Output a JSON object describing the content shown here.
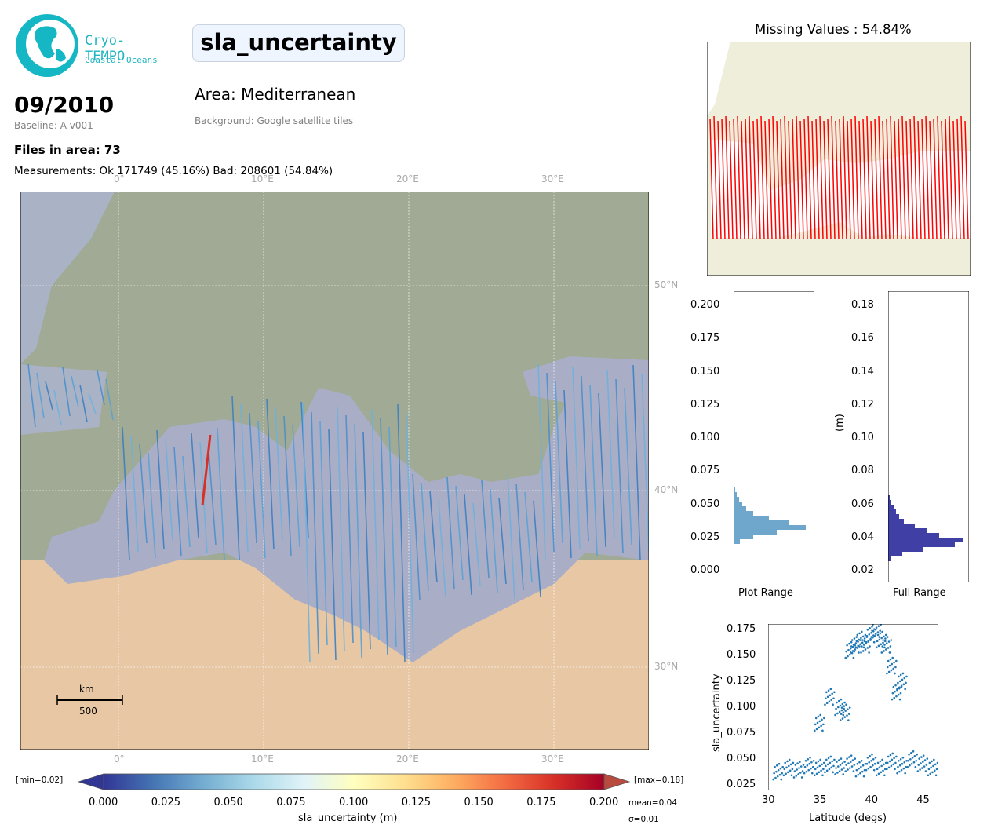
{
  "logo": {
    "name_line1": "Cryo-TEMPO",
    "name_line2": "Coastal Oceans"
  },
  "header": {
    "variable": "sla_uncertainty",
    "date": "09/2010",
    "baseline": "Baseline: A v001",
    "area": "Area: Mediterranean",
    "background": "Background: Google satellite tiles",
    "files": "Files in area: 73",
    "measurements": "Measurements: Ok 171749 (45.16%) Bad: 208601 (54.84%)"
  },
  "main_map": {
    "lon_labels": [
      "0°",
      "10°E",
      "20°E",
      "30°E"
    ],
    "lat_labels": [
      "50°N",
      "40°N",
      "30°N"
    ],
    "scale_bar": {
      "unit": "km",
      "value": "500"
    }
  },
  "colorbar": {
    "label": "sla_uncertainty (m)",
    "min_label": "[min=0.02]",
    "max_label": "[max=0.18]",
    "ticks": [
      "0.000",
      "0.025",
      "0.050",
      "0.075",
      "0.100",
      "0.125",
      "0.150",
      "0.175",
      "0.200"
    ],
    "mean": "mean=0.04",
    "sigma": "σ=0.01",
    "colors": [
      "#313695",
      "#4575b4",
      "#74add1",
      "#abd9e9",
      "#e0f3f8",
      "#ffffbf",
      "#fee090",
      "#fdae61",
      "#f46d43",
      "#d73027",
      "#a50026"
    ]
  },
  "missing_map": {
    "title": "Missing Values : 54.84%",
    "track_color": "#ff0000"
  },
  "hist_plot_range": {
    "xlabel": "Plot Range",
    "ticks": [
      "0.200",
      "0.175",
      "0.150",
      "0.125",
      "0.100",
      "0.075",
      "0.050",
      "0.025",
      "0.000"
    ],
    "color": "#6ea6cc"
  },
  "hist_full_range": {
    "xlabel": "Full Range",
    "ylabel": "(m)",
    "ticks": [
      "0.18",
      "0.16",
      "0.14",
      "0.12",
      "0.10",
      "0.08",
      "0.06",
      "0.04",
      "0.02"
    ],
    "color": "#3f3fa5"
  },
  "chart_data": {
    "type": "scatter",
    "xlabel": "Latitude (degs)",
    "ylabel": "sla_uncertainty",
    "xlim": [
      30,
      46.5
    ],
    "ylim": [
      0.02,
      0.18
    ],
    "xticks": [
      "30",
      "35",
      "40",
      "45"
    ],
    "yticks": [
      "0.025",
      "0.050",
      "0.075",
      "0.100",
      "0.125",
      "0.150",
      "0.175"
    ],
    "color": "#1f77b4",
    "series": [
      {
        "x": [
          31.0,
          32.0,
          33.0,
          34.0,
          35.0,
          36.0,
          37.0,
          38.0,
          39.0,
          40.0,
          41.0,
          42.0,
          43.0,
          44.0,
          45.0,
          46.0
        ],
        "y": [
          0.038,
          0.042,
          0.04,
          0.044,
          0.042,
          0.045,
          0.043,
          0.046,
          0.041,
          0.047,
          0.042,
          0.048,
          0.044,
          0.05,
          0.046,
          0.042
        ]
      },
      {
        "x": [
          35.0,
          36.0,
          37.0,
          37.5,
          38.0,
          38.5,
          39.0,
          39.5,
          40.0,
          40.5,
          41.0,
          41.5,
          42.0,
          42.5,
          43.0
        ],
        "y": [
          0.085,
          0.11,
          0.1,
          0.095,
          0.155,
          0.16,
          0.165,
          0.16,
          0.17,
          0.175,
          0.165,
          0.16,
          0.14,
          0.115,
          0.125
        ]
      }
    ]
  }
}
